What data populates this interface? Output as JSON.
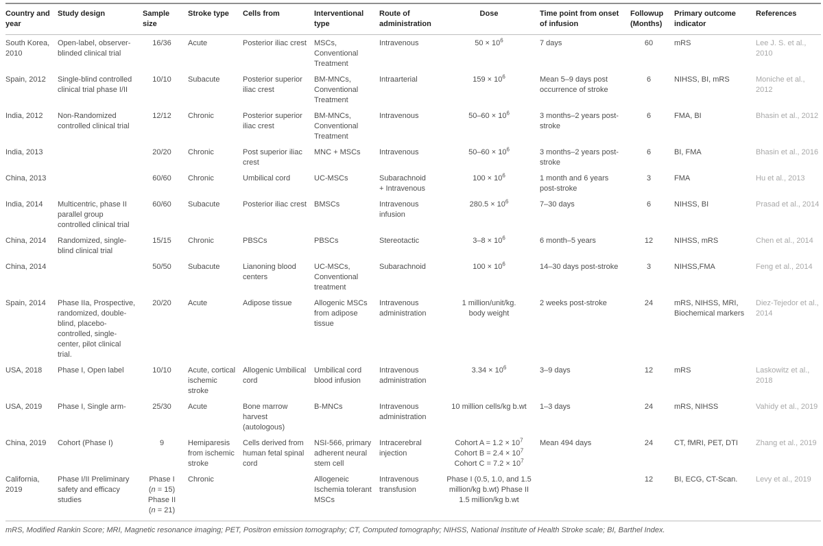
{
  "table": {
    "columns": [
      "Country and year",
      "Study design",
      "Sample size",
      "Stroke type",
      "Cells from",
      "Interventional type",
      "Route of administration",
      "Dose",
      "Time point from onset of infusion",
      "Followup (Months)",
      "Primary outcome indicator",
      "References"
    ],
    "rows": [
      [
        "South Korea, 2010",
        "Open-label, observer-blinded clinical trial",
        "16/36",
        "Acute",
        "Posterior iliac crest",
        "MSCs, Conventional Treatment",
        "Intravenous",
        "50 × 10^{6}",
        "7 days",
        "60",
        "mRS",
        "Lee J. S. et al., 2010"
      ],
      [
        "Spain, 2012",
        "Single-blind controlled clinical trial phase I/II",
        "10/10",
        "Subacute",
        "Posterior superior iliac crest",
        "BM-MNCs, Conventional Treatment",
        "Intraarterial",
        "159 × 10^{6}",
        "Mean 5–9 days post occurrence of stroke",
        "6",
        "NIHSS, BI, mRS",
        "Moniche et al., 2012"
      ],
      [
        "India, 2012",
        "Non-Randomized controlled clinical trial",
        "12/12",
        "Chronic",
        "Posterior superior iliac crest",
        "BM-MNCs, Conventional Treatment",
        "Intravenous",
        "50–60 × 10^{6}",
        "3 months–2 years post-stroke",
        "6",
        "FMA, BI",
        "Bhasin et al., 2012"
      ],
      [
        "India, 2013",
        "",
        "20/20",
        "Chronic",
        "Post superior iliac crest",
        "MNC + MSCs",
        "Intravenous",
        "50–60 × 10^{6}",
        "3 months–2 years post-stroke",
        "6",
        "BI, FMA",
        "Bhasin et al., 2016"
      ],
      [
        "China, 2013",
        "",
        "60/60",
        "Chronic",
        "Umbilical cord",
        "UC-MSCs",
        "Subarachnoid\n+ Intravenous",
        "100 × 10^{6}",
        "1 month and 6 years post-stroke",
        "3",
        "FMA",
        "Hu et al., 2013"
      ],
      [
        "India, 2014",
        "Multicentric, phase II parallel group controlled clinical trial",
        "60/60",
        "Subacute",
        "Posterior iliac crest",
        "BMSCs",
        "Intravenous infusion",
        "280.5 × 10^{6}",
        "7–30 days",
        "6",
        "NIHSS, BI",
        "Prasad et al., 2014"
      ],
      [
        "China, 2014",
        "Randomized, single-blind clinical trial",
        "15/15",
        "Chronic",
        "PBSCs",
        "PBSCs",
        "Stereotactic",
        "3–8 × 10^{6}",
        "6 month–5 years",
        "12",
        "NIHSS, mRS",
        "Chen et al., 2014"
      ],
      [
        "China, 2014",
        "",
        "50/50",
        "Subacute",
        "Lianoning blood centers",
        "UC-MSCs, Conventional treatment",
        "Subarachnoid",
        "100 × 10^{6}",
        "14–30 days post-stroke",
        "3",
        "NIHSS,FMA",
        "Feng et al., 2014"
      ],
      [
        "Spain, 2014",
        "Phase IIa, Prospective, randomized, double-blind, placebo-controlled, single-center, pilot clinical trial.",
        "20/20",
        "Acute",
        "Adipose tissue",
        "Allogenic MSCs from adipose tissue",
        "Intravenous administration",
        "1 million/unit/kg.\nbody weight",
        "2 weeks post-stroke",
        "24",
        "mRS, NIHSS, MRI, Biochemical markers",
        "Diez-Tejedor et al., 2014"
      ],
      [
        "USA, 2018",
        "Phase I, Open label",
        "10/10",
        "Acute, cortical ischemic stroke",
        "Allogenic Umbilical cord",
        "Umbilical cord blood infusion",
        "Intravenous administration",
        "3.34 × 10^{6}",
        "3–9 days",
        "12",
        "mRS",
        "Laskowitz et al., 2018"
      ],
      [
        "USA, 2019",
        "Phase I, Single arm-",
        "25/30",
        "Acute",
        "Bone marrow harvest (autologous)",
        "B-MNCs",
        "Intravenous administration",
        "10 million cells/kg b.wt",
        "1–3 days",
        "24",
        "mRS, NIHSS",
        "Vahidy et al., 2019"
      ],
      [
        "China, 2019",
        "Cohort (Phase I)",
        "9",
        "Hemiparesis from ischemic stroke",
        "Cells derived from human fetal spinal cord",
        "NSI-566, primary adherent neural stem cell",
        "Intracerebral injection",
        "Cohort A = 1.2 × 10^{7}\nCohort B = 2.4 × 10^{7}\nCohort C = 7.2 × 10^{7}",
        "Mean 494 days",
        "24",
        "CT, fMRI, PET, DTI",
        "Zhang et al., 2019"
      ],
      [
        "California, 2019",
        "Phase I/II Preliminary safety and efficacy studies",
        "Phase I\n(*n* = 15)\nPhase II\n(*n* = 21)",
        "Chronic",
        "",
        "Allogeneic Ischemia tolerant MSCs",
        "Intravenous transfusion",
        "Phase I (0.5, 1.0, and 1.5\nmillion/kg b.wt) Phase II\n1.5 million/kg b.wt",
        "",
        "12",
        "BI, ECG, CT-Scan.",
        "Levy et al., 2019"
      ]
    ],
    "footnote": "mRS, Modified Rankin Score; MRI, Magnetic resonance imaging; PET, Positron emission tomography; CT, Computed tomography; NIHSS, National Institute of Health Stroke scale; BI, Barthel Index."
  }
}
